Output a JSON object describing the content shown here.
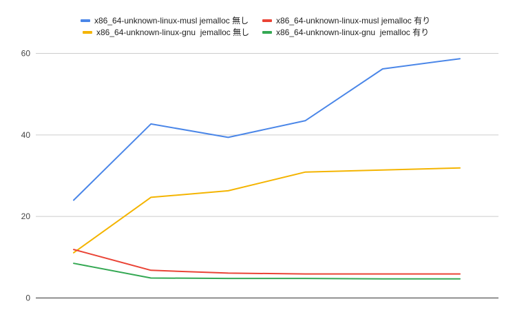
{
  "chart_data": {
    "type": "line",
    "x": [
      1,
      2,
      3,
      4,
      5,
      6
    ],
    "ylim": [
      0,
      60
    ],
    "yticks": [
      0,
      20,
      40,
      60
    ],
    "grid": true,
    "legend_position": "top",
    "series": [
      {
        "name": "x86_64-unknown-linux-musl jemalloc 無し",
        "color": "#4a86e8",
        "values": [
          24.0,
          42.7,
          39.4,
          43.5,
          56.2,
          58.7
        ]
      },
      {
        "name": "x86_64-unknown-linux-musl jemalloc 有り",
        "color": "#ea4335",
        "values": [
          11.9,
          6.8,
          6.1,
          5.9,
          5.9,
          5.9
        ]
      },
      {
        "name": "x86_64-unknown-linux-gnu  jemalloc 無し",
        "color": "#f4b400",
        "values": [
          11.1,
          24.7,
          26.3,
          30.9,
          31.4,
          31.9
        ]
      },
      {
        "name": "x86_64-unknown-linux-gnu  jemalloc 有り",
        "color": "#34a853",
        "values": [
          8.5,
          4.9,
          4.8,
          4.8,
          4.7,
          4.7
        ]
      }
    ]
  }
}
